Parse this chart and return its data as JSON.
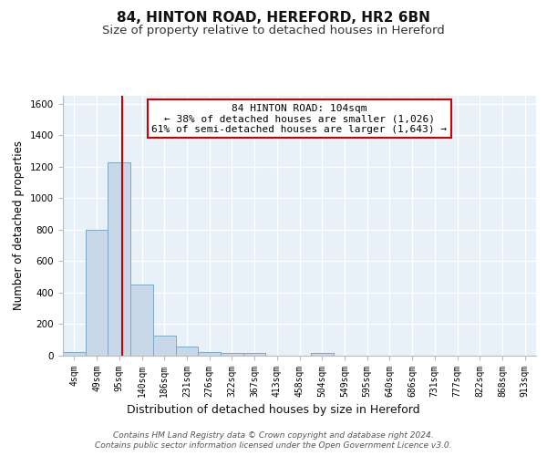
{
  "title1": "84, HINTON ROAD, HEREFORD, HR2 6BN",
  "title2": "Size of property relative to detached houses in Hereford",
  "xlabel": "Distribution of detached houses by size in Hereford",
  "ylabel": "Number of detached properties",
  "bin_labels": [
    "4sqm",
    "49sqm",
    "95sqm",
    "140sqm",
    "186sqm",
    "231sqm",
    "276sqm",
    "322sqm",
    "367sqm",
    "413sqm",
    "458sqm",
    "504sqm",
    "549sqm",
    "595sqm",
    "640sqm",
    "686sqm",
    "731sqm",
    "777sqm",
    "822sqm",
    "868sqm",
    "913sqm"
  ],
  "bar_values": [
    25,
    800,
    1225,
    450,
    130,
    58,
    25,
    15,
    15,
    0,
    0,
    15,
    0,
    0,
    0,
    0,
    0,
    0,
    0,
    0,
    0
  ],
  "bar_color": "#c8d8e8",
  "bar_edge_color": "#7aaac8",
  "background_color": "#e8f0f8",
  "grid_color": "#ffffff",
  "vline_x": 2.15,
  "vline_color": "#cc0000",
  "annotation_line1": "84 HINTON ROAD: 104sqm",
  "annotation_line2": "← 38% of detached houses are smaller (1,026)",
  "annotation_line3": "61% of semi-detached houses are larger (1,643) →",
  "annotation_box_color": "#ffffff",
  "annotation_box_edgecolor": "#cc0000",
  "ylim": [
    0,
    1650
  ],
  "yticks": [
    0,
    200,
    400,
    600,
    800,
    1000,
    1200,
    1400,
    1600
  ],
  "footer_line1": "Contains HM Land Registry data © Crown copyright and database right 2024.",
  "footer_line2": "Contains public sector information licensed under the Open Government Licence v3.0.",
  "title1_fontsize": 11,
  "title2_fontsize": 9.5,
  "xlabel_fontsize": 9,
  "ylabel_fontsize": 8.5,
  "tick_fontsize": 7,
  "annotation_fontsize": 8,
  "footer_fontsize": 6.5
}
